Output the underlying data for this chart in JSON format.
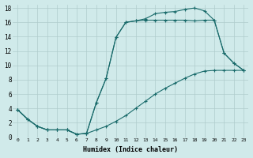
{
  "xlabel": "Humidex (Indice chaleur)",
  "bg_color": "#d0eaea",
  "grid_color": "#b0cccc",
  "line_color": "#1a6b6b",
  "xlim": [
    0,
    23
  ],
  "ylim": [
    0,
    18
  ],
  "xticks": [
    0,
    1,
    2,
    3,
    4,
    5,
    6,
    7,
    8,
    9,
    10,
    11,
    12,
    13,
    14,
    15,
    16,
    17,
    18,
    19,
    20,
    21,
    22,
    23
  ],
  "yticks": [
    0,
    2,
    4,
    6,
    8,
    10,
    12,
    14,
    16,
    18
  ],
  "curve1_x": [
    0,
    1,
    2,
    3,
    4,
    5,
    6,
    7,
    8,
    9,
    10,
    11,
    12,
    13,
    14,
    15,
    16,
    17,
    18,
    19,
    20,
    21,
    22,
    23
  ],
  "curve1_y": [
    3.8,
    2.5,
    1.5,
    1.0,
    1.0,
    1.0,
    0.4,
    0.5,
    4.8,
    8.2,
    13.9,
    16.0,
    16.2,
    16.5,
    17.2,
    17.4,
    17.5,
    17.8,
    18.0,
    17.6,
    16.3,
    11.7,
    10.3,
    9.3
  ],
  "curve2_x": [
    0,
    1,
    2,
    3,
    4,
    5,
    6,
    7,
    8,
    9,
    10,
    11,
    12,
    13,
    14,
    15,
    16,
    17,
    18,
    19,
    20,
    21,
    22,
    23
  ],
  "curve2_y": [
    3.8,
    2.5,
    1.5,
    1.0,
    1.0,
    1.0,
    0.4,
    0.5,
    4.8,
    8.2,
    13.9,
    16.0,
    16.2,
    16.3,
    16.3,
    16.3,
    16.3,
    16.3,
    16.2,
    16.3,
    16.3,
    11.7,
    10.3,
    9.3
  ],
  "curve3_x": [
    0,
    1,
    2,
    3,
    4,
    5,
    6,
    7,
    8,
    9,
    10,
    11,
    12,
    13,
    14,
    15,
    16,
    17,
    18,
    19,
    20,
    21,
    22,
    23
  ],
  "curve3_y": [
    3.8,
    2.5,
    1.5,
    1.0,
    1.0,
    1.0,
    0.4,
    0.5,
    1.0,
    1.5,
    2.2,
    3.0,
    4.0,
    5.0,
    6.0,
    6.8,
    7.5,
    8.2,
    8.8,
    9.2,
    9.3,
    9.3,
    9.3,
    9.3
  ]
}
